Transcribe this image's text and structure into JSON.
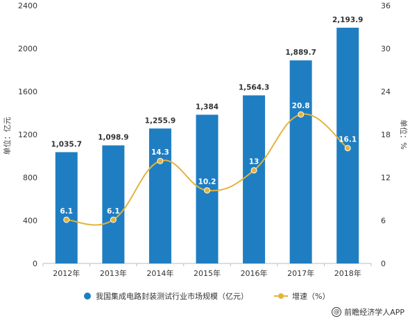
{
  "chart_data": {
    "type": "bar",
    "categories": [
      "2012年",
      "2013年",
      "2014年",
      "2015年",
      "2016年",
      "2017年",
      "2018年"
    ],
    "series": [
      {
        "name": "我国集成电路封装测试行业市场规模（亿元）",
        "kind": "bar",
        "axis": "left",
        "color": "#1f7ec2",
        "values": [
          1035.7,
          1098.9,
          1255.9,
          1384,
          1564.3,
          1889.7,
          2193.9
        ],
        "labels": [
          "1,035.7",
          "1,098.9",
          "1,255.9",
          "1,384",
          "1,564.3",
          "1,889.7",
          "2,193.9"
        ]
      },
      {
        "name": "增速（%）",
        "kind": "line",
        "axis": "right",
        "color": "#e3b33c",
        "values": [
          6.1,
          6.1,
          14.3,
          10.2,
          13,
          20.8,
          16.1
        ],
        "labels": [
          "6.1",
          "6.1",
          "14.3",
          "10.2",
          "13",
          "20.8",
          "16.1"
        ]
      }
    ],
    "ylabel": "单位：亿元",
    "y2label": "单位：%",
    "ylim": [
      0,
      2400
    ],
    "y2lim": [
      0,
      36
    ],
    "yticks": [
      "0",
      "400",
      "800",
      "1200",
      "1600",
      "2000",
      "2400"
    ],
    "y2ticks": [
      "0",
      "6",
      "12",
      "18",
      "24",
      "30",
      "36"
    ],
    "grid": false,
    "legend_position": "bottom"
  },
  "footer": {
    "at_symbol": "@",
    "credit": "前瞻经济学人APP"
  }
}
